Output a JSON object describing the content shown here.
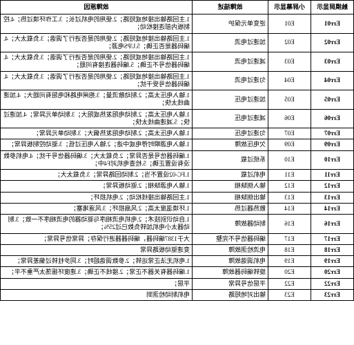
{
  "headers": [
    "触摸屏显示",
    "小屏幕显示",
    "故障描述",
    "故障原因"
  ],
  "rows": [
    {
      "c1": "Err01",
      "c2": "E01",
      "c3": "逆变单元保护",
      "c4": "1.主回路输出接地或短路；2.使用的电机过长；3.工作环境过热；4.控制板内部连接松动；"
    },
    {
      "c1": "Err02",
      "c2": "E02",
      "c3": "加速过电流",
      "c4": "1.主回路输出接地或短路；2.使用的是否进行了调谐；3.负载太大；4.编码器是否正确；5.UPS电源；"
    },
    {
      "c1": "Err03",
      "c2": "E03",
      "c3": "减速过电流",
      "c4": "1.主回路输出接地或短路；2.使用的是否进行了调谐；3.负载太大；4.编码器信号不正确；5.编码器连接有问题；"
    },
    {
      "c1": "Err04",
      "c2": "E04",
      "c3": "匀速过电流",
      "c4": "1.主回路输出接地或短路；2.使用的是否进行了调谐；3.负载太大；4.编码器信号受干扰；"
    },
    {
      "c1": "Err05",
      "c2": "E05",
      "c3": "加速过电压",
      "c4": "1.输入电压太高；2.制动散流量；3.抱闸电路和电阻有问题大；4.加速曲线太快；"
    },
    {
      "c1": "Err06",
      "c2": "E06",
      "c3": "减速过电压",
      "c4": "1.输入电压太高；2.制动电阻发热或阻大；3.制动单元异常；4.加速过快；5.减速曲线太快；"
    },
    {
      "c1": "Err07",
      "c2": "E07",
      "c3": "匀速过电压",
      "c4": "1.输入电压太高；2.制动电阻发热偏大；3.制动单元异常；"
    },
    {
      "c1": "Err09",
      "c2": "E09",
      "c3": "欠电压故障",
      "c4": "1.输入电源瞬时停电或中途；2.输入电压过低；3.驱动控制板异常；"
    },
    {
      "c1": "Err10",
      "c2": "E10",
      "c3": "系统过载",
      "c4": "1.编码器信号是否异常；2.负载太大；3.编码器信号干扰；4.电机参数没有设置正确；5.检查电机对F4中；"
    },
    {
      "c1": "Err11",
      "c2": "E11",
      "c3": "电机过载",
      "c4": "1.FC-02设置不当；2.制动回路异常；3.负载太大；"
    },
    {
      "c1": "Err12",
      "c2": "E12",
      "c3": "输入侧缺相",
      "c4": "1.输入电源缺相；2.驱动板异常；"
    },
    {
      "c1": "Err13",
      "c2": "E13",
      "c3": "输出侧缺相",
      "c4": "1.主回路输出接线松动；2.电机损坏；"
    },
    {
      "c1": "Err14",
      "c2": "E14",
      "c3": "散热器过热",
      "c4": "1.环境温度太高；2.风扇损坏；3.风道堵塞；"
    },
    {
      "c1": "Err16",
      "c2": "E16",
      "c3": "制动器故障",
      "c4": "1.自动识别技术；2.电机电流相序与驱动器的电流相序不一致；3.制动器太小电机加转负数已过25%；"
    },
    {
      "c1": "Err17",
      "c2": "E17",
      "c3": "编码器信号不完整",
      "c4": "大于1387编码器，编码器器进行保存；异常信号异常；"
    },
    {
      "c1": "Err18",
      "c2": "E18",
      "c3": "电流检测故障",
      "c4": "变速驱动板路异常"
    },
    {
      "c1": "Err19",
      "c2": "E19",
      "c3": "电机调谐故障",
      "c4": "1.电机无法正常运转；2.参数调谐超时；3.同步柱转过偏差异常；"
    },
    {
      "c1": "Err20",
      "c2": "E20",
      "c3": "旋转编码器故障",
      "c4": "1.编码器有关器不正常；2.接线不正确；3.速度环振荡太严重不平；"
    },
    {
      "c1": "Err22",
      "c2": "E22",
      "c3": "平层信号异常",
      "c4": "平层；"
    },
    {
      "c1": "Err23",
      "c2": "E23",
      "c3": "输出对地短路",
      "c4": "电机制动检测到"
    }
  ]
}
